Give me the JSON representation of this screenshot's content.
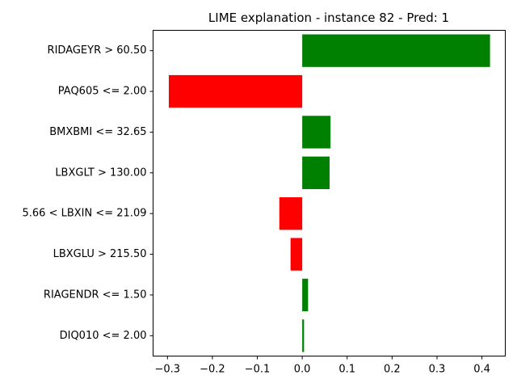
{
  "chart_data": {
    "type": "bar",
    "orientation": "horizontal",
    "title": "LIME explanation - instance 82 - Pred: 1",
    "xlabel": "",
    "ylabel": "",
    "xlim": [
      -0.332,
      0.452
    ],
    "xticks": [
      -0.3,
      -0.2,
      -0.1,
      0.0,
      0.1,
      0.2,
      0.3,
      0.4
    ],
    "xtick_labels": [
      "−0.3",
      "−0.2",
      "−0.1",
      "0.0",
      "0.1",
      "0.2",
      "0.3",
      "0.4"
    ],
    "categories": [
      "RIDAGEYR > 60.50",
      "PAQ605 <= 2.00",
      "BMXBMI <= 32.65",
      "LBXGLT > 130.00",
      "5.66 < LBXIN <= 21.09",
      "LBXGLU > 215.50",
      "RIAGENDR <= 1.50",
      "DIQ010 <= 2.00"
    ],
    "values": [
      0.418,
      -0.297,
      0.063,
      0.061,
      -0.051,
      -0.026,
      0.013,
      0.004
    ],
    "colors": {
      "positive": "#008000",
      "negative": "#ff0000"
    },
    "grid": false,
    "legend": "none"
  }
}
